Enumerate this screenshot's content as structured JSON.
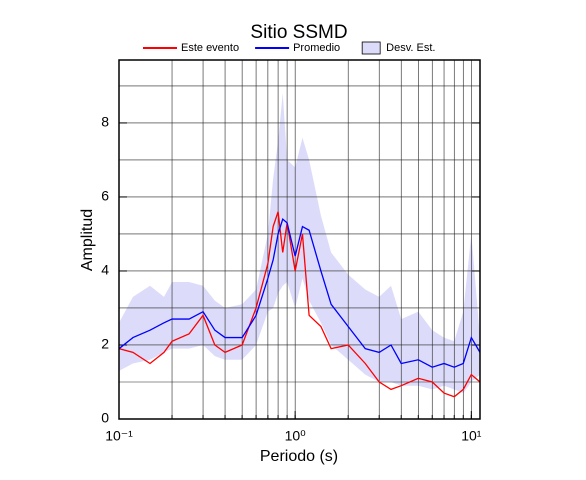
{
  "chart_data": {
    "type": "line",
    "title": "Sitio SSMD",
    "xlabel": "Periodo (s)",
    "ylabel": "Amplitud",
    "xscale": "log",
    "x": [
      0.1,
      0.12,
      0.15,
      0.18,
      0.2,
      0.25,
      0.3,
      0.35,
      0.4,
      0.5,
      0.6,
      0.7,
      0.75,
      0.8,
      0.85,
      0.9,
      1.0,
      1.1,
      1.2,
      1.4,
      1.6,
      2.0,
      2.5,
      3.0,
      3.5,
      4.0,
      5.0,
      6.0,
      7.0,
      8.0,
      9.0,
      10.0,
      11.2
    ],
    "series": [
      {
        "name": "Este evento",
        "color": "#ff0000",
        "values": [
          1.9,
          1.8,
          1.5,
          1.8,
          2.1,
          2.3,
          2.8,
          2.0,
          1.8,
          2.0,
          3.0,
          4.2,
          5.2,
          5.6,
          4.5,
          5.3,
          4.0,
          5.0,
          2.8,
          2.5,
          1.9,
          2.0,
          1.5,
          1.0,
          0.8,
          0.9,
          1.1,
          1.0,
          0.7,
          0.6,
          0.8,
          1.2,
          1.0
        ]
      },
      {
        "name": "Promedio",
        "color": "#0000ff",
        "values": [
          1.9,
          2.2,
          2.4,
          2.6,
          2.7,
          2.7,
          2.9,
          2.4,
          2.2,
          2.2,
          2.8,
          3.8,
          4.3,
          5.0,
          5.4,
          5.3,
          4.4,
          5.2,
          5.1,
          4.0,
          3.1,
          2.5,
          1.9,
          1.8,
          2.0,
          1.5,
          1.6,
          1.4,
          1.5,
          1.4,
          1.5,
          2.2,
          1.8
        ]
      }
    ],
    "band": {
      "name": "Desv. Est.",
      "color": "#dcdcfa",
      "upper": [
        2.6,
        3.3,
        3.6,
        3.3,
        3.7,
        3.7,
        3.6,
        3.2,
        3.0,
        3.1,
        3.5,
        5.0,
        6.5,
        7.5,
        8.8,
        7.0,
        6.8,
        7.6,
        7.0,
        5.5,
        4.5,
        3.9,
        3.5,
        3.3,
        3.6,
        2.7,
        2.9,
        2.4,
        2.2,
        2.1,
        2.9,
        5.0,
        2.2
      ],
      "lower": [
        1.3,
        1.5,
        1.6,
        1.8,
        1.9,
        1.9,
        2.0,
        1.7,
        1.6,
        1.6,
        2.0,
        2.9,
        3.0,
        3.4,
        3.6,
        3.7,
        3.0,
        3.8,
        3.2,
        2.6,
        2.0,
        1.6,
        1.2,
        1.0,
        1.0,
        0.9,
        0.9,
        0.8,
        0.9,
        0.8,
        0.7,
        1.0,
        1.2
      ]
    },
    "xlim": [
      0.1,
      11.2
    ],
    "ylim": [
      0,
      9.7
    ],
    "xticks": [
      {
        "value": 0.1,
        "label": "10⁻¹"
      },
      {
        "value": 1,
        "label": "10⁰"
      },
      {
        "value": 10,
        "label": "10¹"
      }
    ],
    "yticks": [
      0,
      2,
      4,
      6,
      8
    ],
    "grid": true
  }
}
